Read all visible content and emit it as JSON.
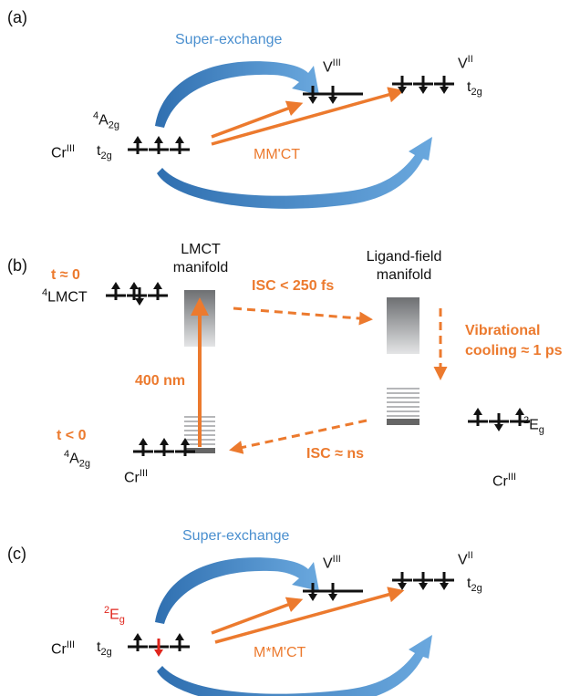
{
  "colors": {
    "orange": "#ec7a2e",
    "blue": "#4a8fcf",
    "red": "#e0261d",
    "black": "#111111",
    "gray_box_top": "#6d6f72",
    "gray_box_bottom": "#e4e5e6",
    "level_gray": "#8a8c8f",
    "level_dark": "#666666"
  },
  "panel_a": {
    "tag": "(a)",
    "superexchange": "Super-exchange",
    "vIII": {
      "base": "V",
      "sup": "III"
    },
    "vII": {
      "base": "V",
      "sup": "II"
    },
    "t2g_right": {
      "base": "t",
      "sub": "2g"
    },
    "state": {
      "pre": "4",
      "base": "A",
      "sub": "2g"
    },
    "cr": {
      "base": "Cr",
      "sup": "III"
    },
    "t2g_left": {
      "base": "t",
      "sub": "2g"
    },
    "transfer": "MM'CT",
    "cr_spins": [
      "up",
      "up",
      "up"
    ],
    "vIII_spins": [
      "down",
      "down",
      "empty"
    ],
    "vII_spins": [
      "down",
      "down",
      "down"
    ]
  },
  "panel_b": {
    "tag": "(b)",
    "lmct_title": [
      "LMCT",
      "manifold"
    ],
    "lf_title": [
      "Ligand-field",
      "manifold"
    ],
    "t0": "t ≈ 0",
    "lmct_state": {
      "pre": "4",
      "base": "LMCT"
    },
    "isc_fast": "ISC < 250 fs",
    "vib": [
      "Vibrational",
      "cooling ≈ 1 ps"
    ],
    "excitation": "400 nm",
    "tneg": "t < 0",
    "ground_state": {
      "pre": "4",
      "base": "A",
      "sub": "2g"
    },
    "cr": {
      "base": "Cr",
      "sup": "III"
    },
    "isc_slow": "ISC ≈ ns",
    "eg_state": {
      "pre": "2",
      "base": "E",
      "sub": "g"
    },
    "cr_right": {
      "base": "Cr",
      "sup": "III"
    },
    "lmct_spins": [
      "up",
      "updown",
      "up"
    ],
    "ground_spins": [
      "up",
      "up",
      "up"
    ],
    "eg_spins": [
      "up",
      "down",
      "up"
    ]
  },
  "panel_c": {
    "tag": "(c)",
    "superexchange": "Super-exchange",
    "vIII": {
      "base": "V",
      "sup": "III"
    },
    "vII": {
      "base": "V",
      "sup": "II"
    },
    "t2g_right": {
      "base": "t",
      "sub": "2g"
    },
    "state": {
      "pre": "2",
      "base": "E",
      "sub": "g"
    },
    "cr": {
      "base": "Cr",
      "sup": "III"
    },
    "t2g_left": {
      "base": "t",
      "sub": "2g"
    },
    "transfer": "M*M'CT",
    "cr_spins": [
      "up",
      "down-red",
      "up"
    ],
    "vIII_spins": [
      "down",
      "down",
      "empty"
    ],
    "vII_spins": [
      "down",
      "down",
      "down"
    ]
  }
}
